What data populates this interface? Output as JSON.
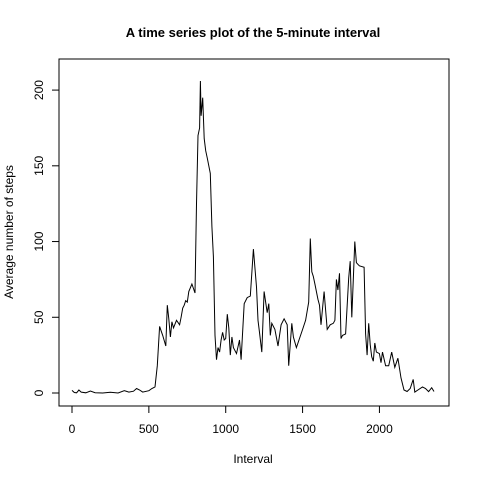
{
  "chart_data": {
    "type": "line",
    "title": "A time series plot of the 5-minute interval",
    "xlabel": "Interval",
    "ylabel": "Average number of steps",
    "xlim": [
      0,
      2355
    ],
    "ylim": [
      0,
      206
    ],
    "x_ticks": [
      0,
      500,
      1000,
      1500,
      2000
    ],
    "y_ticks": [
      0,
      50,
      100,
      150,
      200
    ],
    "grid": false,
    "legend": "none",
    "line_color": "#000000",
    "series": [
      {
        "x": [
          0,
          15,
          30,
          45,
          60,
          90,
          120,
          150,
          200,
          250,
          300,
          340,
          370,
          400,
          420,
          440,
          460,
          500,
          520,
          540,
          555,
          570,
          590,
          610,
          620,
          630,
          640,
          650,
          660,
          680,
          700,
          710,
          720,
          730,
          740,
          750,
          760,
          780,
          800,
          810,
          820,
          830,
          835,
          840,
          850,
          860,
          870,
          880,
          890,
          900,
          910,
          920,
          930,
          940,
          950,
          960,
          970,
          980,
          990,
          1000,
          1010,
          1020,
          1030,
          1040,
          1050,
          1070,
          1090,
          1100,
          1120,
          1140,
          1160,
          1180,
          1200,
          1210,
          1220,
          1235,
          1250,
          1270,
          1280,
          1290,
          1300,
          1320,
          1340,
          1360,
          1380,
          1400,
          1410,
          1430,
          1440,
          1460,
          1480,
          1500,
          1520,
          1540,
          1550,
          1560,
          1570,
          1580,
          1600,
          1610,
          1620,
          1640,
          1660,
          1680,
          1700,
          1710,
          1720,
          1730,
          1740,
          1750,
          1760,
          1780,
          1800,
          1810,
          1820,
          1840,
          1850,
          1860,
          1870,
          1900,
          1910,
          1920,
          1930,
          1940,
          1950,
          1960,
          1970,
          1980,
          2000,
          2010,
          2020,
          2040,
          2060,
          2080,
          2100,
          2120,
          2140,
          2160,
          2180,
          2200,
          2220,
          2230,
          2250,
          2280,
          2300,
          2320,
          2340,
          2355
        ],
        "y": [
          1.7,
          0.3,
          0.1,
          2.0,
          0.6,
          0.1,
          1.3,
          0.2,
          0.0,
          0.5,
          0.0,
          1.5,
          0.6,
          1.2,
          3.0,
          2.0,
          0.6,
          1.5,
          3.0,
          4.0,
          18.0,
          44.0,
          38.0,
          31.0,
          58.0,
          49.0,
          37.0,
          47.0,
          43.0,
          48.0,
          45.0,
          50.0,
          56.0,
          58.0,
          61.0,
          60.0,
          67.0,
          72.0,
          66.0,
          125.0,
          170.0,
          175.0,
          206.0,
          183.0,
          195.0,
          168.0,
          160.0,
          155.0,
          150.0,
          145.0,
          110.0,
          90.0,
          38.0,
          22.0,
          30.0,
          27.0,
          35.0,
          40.0,
          35.0,
          36.0,
          52.0,
          43.0,
          25.0,
          37.0,
          30.0,
          26.0,
          35.0,
          22.0,
          59.0,
          63.0,
          64.0,
          95.0,
          70.0,
          48.0,
          40.0,
          27.0,
          67.0,
          53.0,
          59.0,
          38.0,
          46.0,
          42.0,
          31.0,
          45.0,
          49.0,
          45.0,
          18.0,
          46.0,
          37.0,
          30.0,
          36.0,
          42.0,
          48.0,
          60.0,
          102.0,
          80.0,
          77.0,
          72.0,
          62.0,
          58.0,
          45.0,
          67.0,
          42.0,
          45.0,
          46.0,
          48.0,
          75.0,
          68.0,
          79.0,
          36.0,
          38.0,
          39.0,
          76.0,
          87.0,
          50.0,
          100.0,
          86.0,
          85.0,
          84.0,
          83.0,
          39.0,
          25.0,
          46.0,
          32.0,
          24.0,
          21.0,
          33.0,
          27.0,
          26.0,
          20.0,
          27.0,
          18.0,
          18.0,
          27.0,
          17.0,
          23.0,
          10.0,
          2.0,
          1.0,
          3.0,
          9.0,
          0.6,
          2.0,
          4.0,
          3.0,
          0.9,
          3.5,
          1.0
        ]
      }
    ]
  }
}
